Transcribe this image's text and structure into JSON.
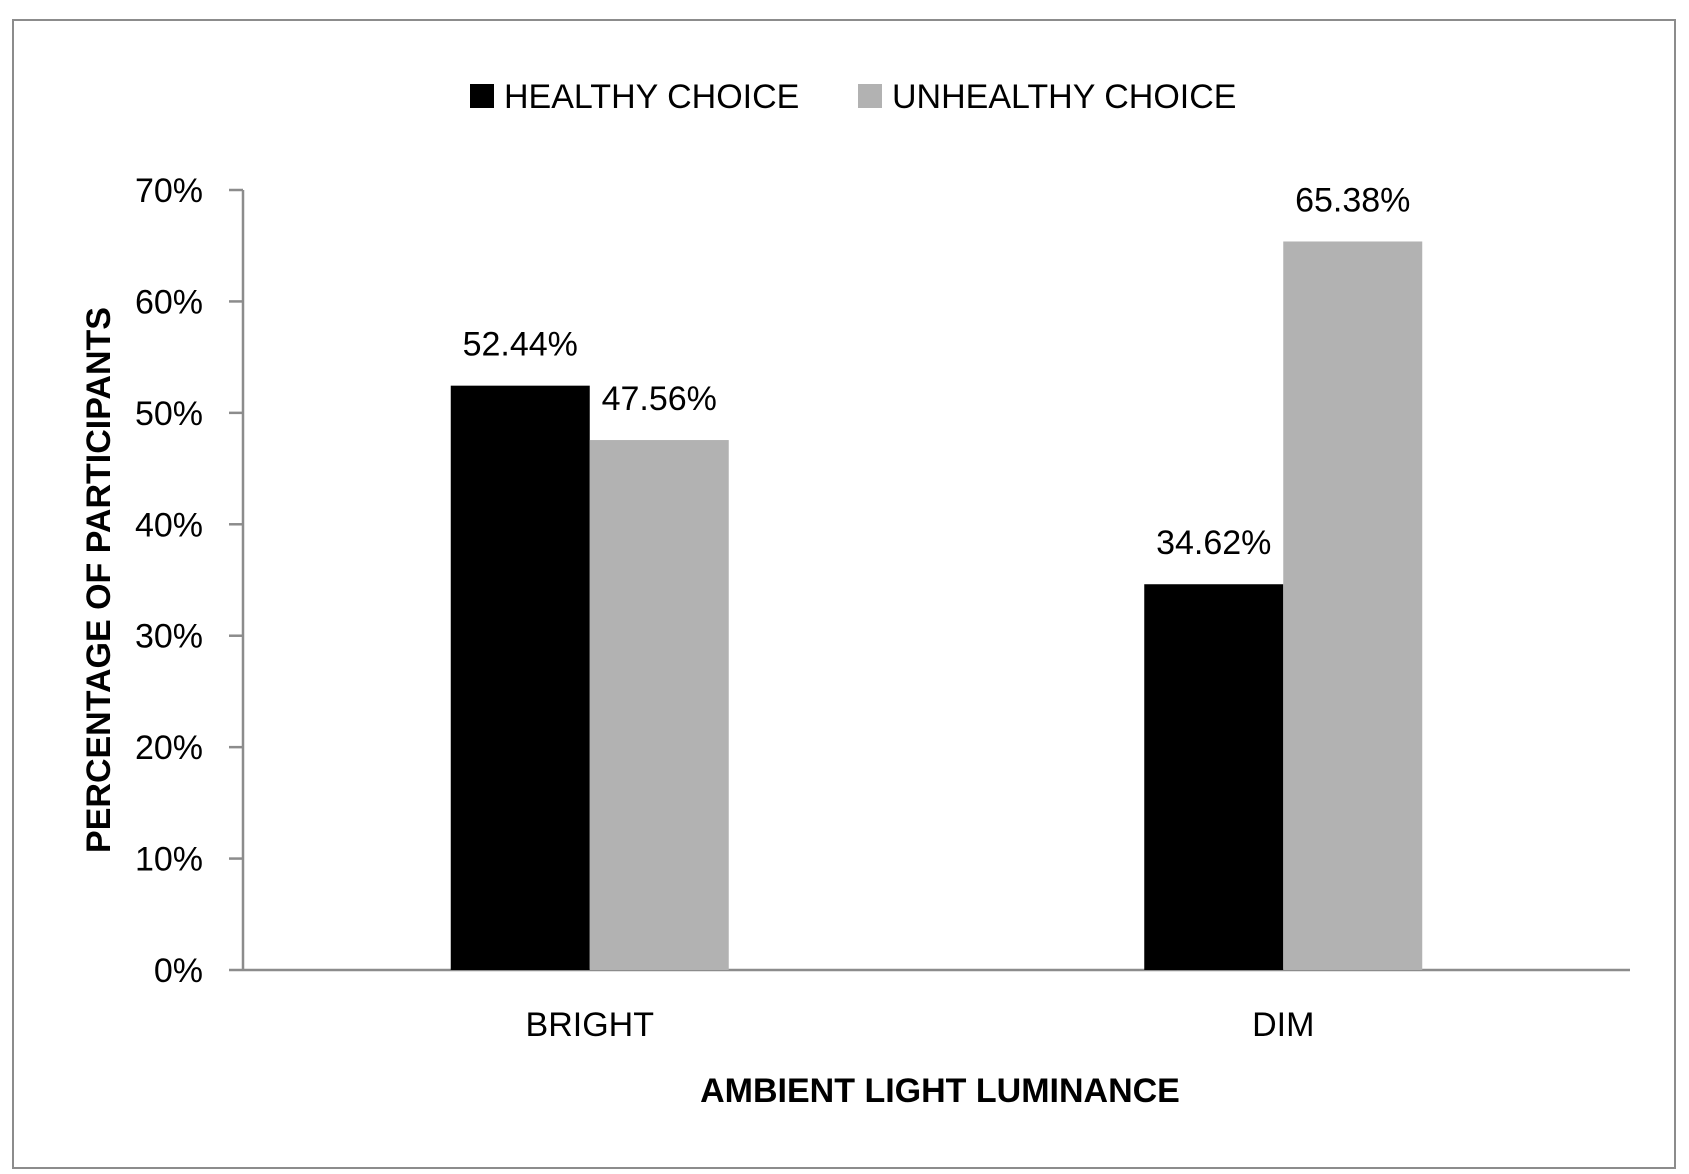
{
  "chart_data": {
    "type": "bar",
    "categories": [
      "BRIGHT",
      "DIM"
    ],
    "series": [
      {
        "name": "HEALTHY CHOICE",
        "color": "#000000",
        "values": [
          52.44,
          34.62
        ],
        "labels": [
          "52.44%",
          "34.62%"
        ]
      },
      {
        "name": "UNHEALTHY CHOICE",
        "color": "#b2b2b2",
        "values": [
          47.56,
          65.38
        ],
        "labels": [
          "47.56%",
          "65.38%"
        ]
      }
    ],
    "xlabel": "AMBIENT LIGHT LUMINANCE",
    "ylabel": "PERCENTAGE OF PARTICIPANTS",
    "ylim": [
      0,
      70
    ],
    "yticks": [
      0,
      10,
      20,
      30,
      40,
      50,
      60,
      70
    ],
    "ytick_labels": [
      "0%",
      "10%",
      "20%",
      "30%",
      "40%",
      "50%",
      "60%",
      "70%"
    ],
    "grid": false,
    "legend_position": "top-center",
    "axis_color": "#8c8c8c"
  }
}
